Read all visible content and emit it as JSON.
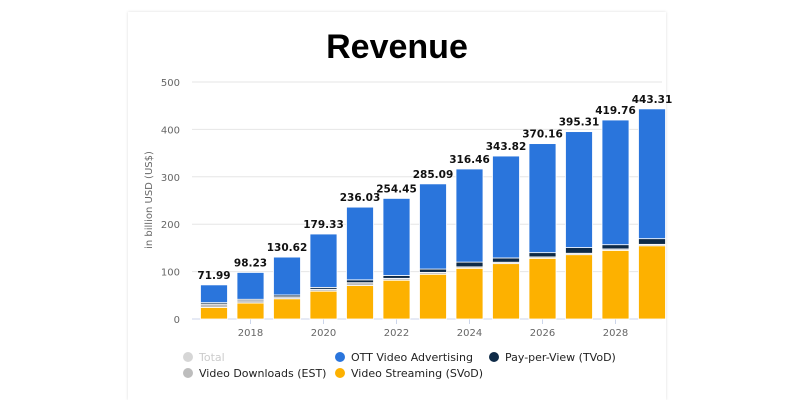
{
  "chart_data": {
    "type": "bar",
    "stacked": true,
    "title": "Revenue",
    "xlabel": "",
    "ylabel": "in billion USD (US$)",
    "ylim": [
      0,
      500
    ],
    "yticks": [
      0,
      100,
      200,
      300,
      400,
      500
    ],
    "categories": [
      2017,
      2018,
      2019,
      2020,
      2021,
      2022,
      2023,
      2024,
      2025,
      2026,
      2027,
      2028,
      2029
    ],
    "xtick_labels": [
      "2018",
      "2020",
      "2022",
      "2024",
      "2026",
      "2028"
    ],
    "totals": [
      "71.99",
      "98.23",
      "130.62",
      "179.33",
      "236.03",
      "254.45",
      "285.09",
      "316.46",
      "343.82",
      "370.16",
      "395.31",
      "419.76",
      "443.31"
    ],
    "series": [
      {
        "name": "Video Streaming (SVoD)",
        "color": "#fdb100",
        "values": [
          24.5,
          33.6,
          42.7,
          58.7,
          70.6,
          81.8,
          94.4,
          107,
          116.8,
          128,
          135.7,
          144.8,
          154.5
        ]
      },
      {
        "name": "Video Downloads (EST)",
        "color": "#bdbdbd",
        "values": [
          7,
          5,
          4,
          4,
          6,
          4,
          4,
          3,
          3,
          3,
          3,
          3,
          3
        ]
      },
      {
        "name": "Pay-per-View (TVoD)",
        "color": "#0e2a47",
        "values": [
          3,
          3,
          4,
          4,
          6,
          6,
          7,
          10,
          9,
          9,
          12,
          9,
          12
        ]
      },
      {
        "name": "OTT Video Advertising",
        "color": "#2a75dc",
        "values": [
          37.5,
          56.6,
          79.9,
          112.6,
          153.4,
          162.6,
          179.7,
          196.5,
          215,
          230,
          244.6,
          263,
          273.8
        ]
      }
    ],
    "legend": {
      "placement": "bottom",
      "entries": [
        {
          "name": "Total",
          "color": "#d6d6d6",
          "muted": true
        },
        {
          "name": "OTT Video Advertising",
          "color": "#2a75dc"
        },
        {
          "name": "Pay-per-View (TVoD)",
          "color": "#0e2a47"
        },
        {
          "name": "Video Downloads (EST)",
          "color": "#bdbdbd"
        },
        {
          "name": "Video Streaming (SVoD)",
          "color": "#fdb100"
        }
      ]
    },
    "grid": true
  }
}
